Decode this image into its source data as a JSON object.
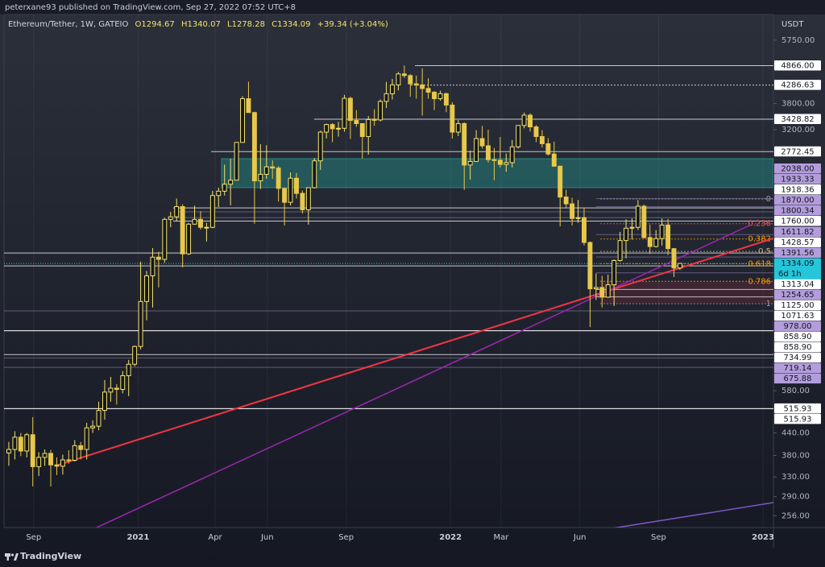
{
  "header": {
    "text": "peterxane93 published on TradingView.com, Sep 27, 2022 07:52 UTC+8"
  },
  "footer": {
    "brand": "TradingView"
  },
  "chart_data": {
    "type": "candlestick",
    "legend": {
      "symbol": "Ethereum/Tether, 1W, GATEIO",
      "open": "O1294.67",
      "high": "H1340.07",
      "low": "L1278.28",
      "close": "C1334.09",
      "change": "+39.34 (+3.04%)"
    },
    "currency": "USDT",
    "log_scale": true,
    "up_color": "#f5e36b",
    "down_color": "#e8c84a",
    "open": [
      386,
      395,
      428,
      391,
      435,
      353,
      375,
      385,
      357,
      354,
      369,
      368,
      405,
      395,
      455,
      460,
      510,
      575,
      590,
      585,
      640,
      690,
      775,
      1040,
      1230,
      1390,
      1370,
      1780,
      1810,
      1935,
      1420,
      1725,
      1780,
      1690,
      1690,
      2080,
      2140,
      2240,
      2300,
      2945,
      3920,
      3580,
      2290,
      2390,
      2510,
      2490,
      2180,
      1990,
      2330,
      2110,
      1895,
      2190,
      2610,
      3150,
      3310,
      3220,
      3230,
      3930,
      3400,
      3330,
      3060,
      3420,
      3410,
      3850,
      4050,
      4290,
      4610,
      4560,
      4320,
      4290,
      4190,
      4090,
      3920,
      4050,
      3760,
      3150,
      3330,
      2540,
      2600,
      3020,
      2880,
      2630,
      2620,
      2550,
      2580,
      2860,
      3290,
      3520,
      3260,
      3060,
      2920,
      2730,
      2520,
      2060,
      1970,
      1790,
      1800,
      1530,
      1130,
      1140,
      1070,
      1160,
      1360,
      1550,
      1680,
      1690,
      1940,
      1580,
      1490,
      1570,
      1715,
      1470,
      1294.67
    ],
    "high": [
      415,
      445,
      440,
      440,
      488,
      388,
      395,
      394,
      375,
      382,
      393,
      420,
      415,
      470,
      478,
      540,
      622,
      635,
      605,
      660,
      710,
      780,
      1350,
      1270,
      1475,
      1440,
      1800,
      1870,
      2040,
      1965,
      1740,
      1945,
      1880,
      1740,
      2145,
      2190,
      2545,
      2645,
      2950,
      3985,
      4380,
      3600,
      2910,
      2890,
      2620,
      2520,
      2180,
      2420,
      2410,
      2150,
      2190,
      2660,
      3180,
      3330,
      3340,
      3370,
      4020,
      3970,
      3640,
      3330,
      3500,
      3660,
      3900,
      4375,
      4460,
      4670,
      4870,
      4600,
      4560,
      4780,
      4480,
      4120,
      4130,
      4080,
      3830,
      3410,
      3360,
      2790,
      3190,
      3280,
      3200,
      2840,
      3050,
      2740,
      2990,
      3290,
      3580,
      3560,
      3300,
      3190,
      3030,
      2960,
      2520,
      2160,
      2050,
      2020,
      1920,
      1540,
      1250,
      1230,
      1240,
      1370,
      1640,
      1780,
      1790,
      2020,
      1960,
      1720,
      1660,
      1790,
      1785,
      1470,
      1340.07
    ],
    "low": [
      355,
      370,
      378,
      375,
      310,
      332,
      355,
      310,
      334,
      335,
      360,
      365,
      370,
      370,
      440,
      448,
      480,
      540,
      530,
      570,
      560,
      680,
      760,
      920,
      1000,
      1140,
      1340,
      1690,
      1760,
      1300,
      1410,
      1720,
      1665,
      1540,
      1680,
      1930,
      2080,
      1950,
      2300,
      2945,
      3580,
      1730,
      2170,
      2320,
      2320,
      2000,
      1710,
      1950,
      2040,
      1850,
      1720,
      2180,
      2460,
      3020,
      2950,
      3060,
      3160,
      3010,
      3260,
      2650,
      2720,
      3280,
      3380,
      3690,
      3900,
      4140,
      4490,
      3970,
      3920,
      3510,
      3920,
      3640,
      3870,
      3590,
      3020,
      3070,
      2160,
      2310,
      2600,
      2830,
      2580,
      2300,
      2500,
      2430,
      2500,
      2830,
      3230,
      3160,
      2950,
      2850,
      2700,
      2510,
      1700,
      1920,
      1710,
      1740,
      1500,
      880,
      1050,
      1000,
      1070,
      1010,
      1350,
      1380,
      1560,
      1660,
      1570,
      1420,
      1480,
      1500,
      1410,
      1220,
      1278.28
    ],
    "close": [
      395,
      428,
      391,
      435,
      353,
      375,
      385,
      357,
      354,
      369,
      368,
      405,
      395,
      455,
      460,
      510,
      575,
      590,
      585,
      640,
      690,
      775,
      1040,
      1230,
      1390,
      1370,
      1780,
      1810,
      1935,
      1420,
      1725,
      1780,
      1690,
      1690,
      2080,
      2140,
      2240,
      2300,
      2945,
      3920,
      3580,
      2290,
      2390,
      2510,
      2490,
      2180,
      1990,
      2330,
      2110,
      1895,
      2190,
      2610,
      3150,
      3310,
      3220,
      3230,
      3930,
      3400,
      3330,
      3060,
      3420,
      3410,
      3850,
      4050,
      4290,
      4610,
      4560,
      4320,
      4290,
      4190,
      4090,
      3920,
      4050,
      3760,
      3150,
      3330,
      2540,
      2600,
      3020,
      2880,
      2630,
      2620,
      2550,
      2580,
      2860,
      3290,
      3520,
      3260,
      3060,
      2920,
      2730,
      2520,
      2060,
      1970,
      1790,
      1800,
      1530,
      1130,
      1140,
      1070,
      1160,
      1360,
      1550,
      1680,
      1690,
      1940,
      1580,
      1490,
      1570,
      1715,
      1470,
      1294.75,
      1334.09
    ],
    "xlim": [
      -0.8,
      127.6
    ],
    "xticks": [
      {
        "value": 4.14,
        "label": "Sep"
      },
      {
        "value": 21.57,
        "label": "2021"
      },
      {
        "value": 34.43,
        "label": "Apr"
      },
      {
        "value": 43.14,
        "label": "Jun"
      },
      {
        "value": 56.29,
        "label": "Sep"
      },
      {
        "value": 73.71,
        "label": "2022"
      },
      {
        "value": 82.14,
        "label": "Mar"
      },
      {
        "value": 95.29,
        "label": "Jun"
      },
      {
        "value": 108.43,
        "label": "Sep"
      },
      {
        "value": 125.86,
        "label": "2023"
      }
    ],
    "ylim": [
      237,
      6800
    ],
    "yticks": [
      {
        "value": 5750,
        "label": "5750.00"
      },
      {
        "value": 3800,
        "label": "3800.00"
      },
      {
        "value": 3200,
        "label": "3200.00"
      },
      {
        "value": 580,
        "label": "580.00"
      },
      {
        "value": 440,
        "label": "440.00"
      },
      {
        "value": 380,
        "label": "380.00"
      },
      {
        "value": 330,
        "label": "330.00"
      },
      {
        "value": 290,
        "label": "290.00"
      },
      {
        "value": 256,
        "label": "256.00"
      }
    ],
    "countdown": "6d 1h",
    "current_color": "#26c6da",
    "levels": {
      "values": [
        4866,
        4286.63,
        3428.82,
        2772.45,
        2038,
        1933.33,
        1918.36,
        1870,
        1800.34,
        1760,
        1611.82,
        1428.57,
        1391.56,
        1313.04,
        1254.65,
        1125,
        1071.63,
        978,
        858.9,
        858.9,
        734.99,
        719.14,
        675.88,
        515.93,
        515.93
      ],
      "value_labels": [
        "4866.00",
        "4286.63",
        "3428.82",
        "2772.45",
        "2038.00",
        "1933.33",
        "1918.36",
        "1870.00",
        "1800.34",
        "1760.00",
        "1611.82",
        "1428.57",
        "1391.56",
        "1313.04",
        "1254.65",
        "1125.00",
        "1071.63",
        "978.00",
        "858.90",
        "858.90",
        "734.99",
        "719.14",
        "675.88",
        "515.93",
        "515.93"
      ],
      "colors": [
        "#ffffff",
        "#ffffff",
        "#ffffff",
        "#ffffff",
        "#b39ddb",
        "#b39ddb",
        "#ffffff",
        "#b39ddb",
        "#b39ddb",
        "#ffffff",
        "#b39ddb",
        "#ffffff",
        "#b39ddb",
        "#ffffff",
        "#b39ddb",
        "#ffffff",
        "#ffffff",
        "#b39ddb",
        "#ffffff",
        "#ffffff",
        "#ffffff",
        "#b39ddb",
        "#b39ddb",
        "#ffffff",
        "#ffffff"
      ]
    },
    "fib": {
      "levels": [
        0,
        0.236,
        0.382,
        0.5,
        0.618,
        0.786,
        1
      ],
      "high": 2034,
      "low": 1025,
      "colors": [
        "#9e9e9e",
        "#f7525f",
        "#ff9800",
        "#c8b07a",
        "#ff9800",
        "#ff9800",
        "#9e9e9e"
      ]
    }
  }
}
